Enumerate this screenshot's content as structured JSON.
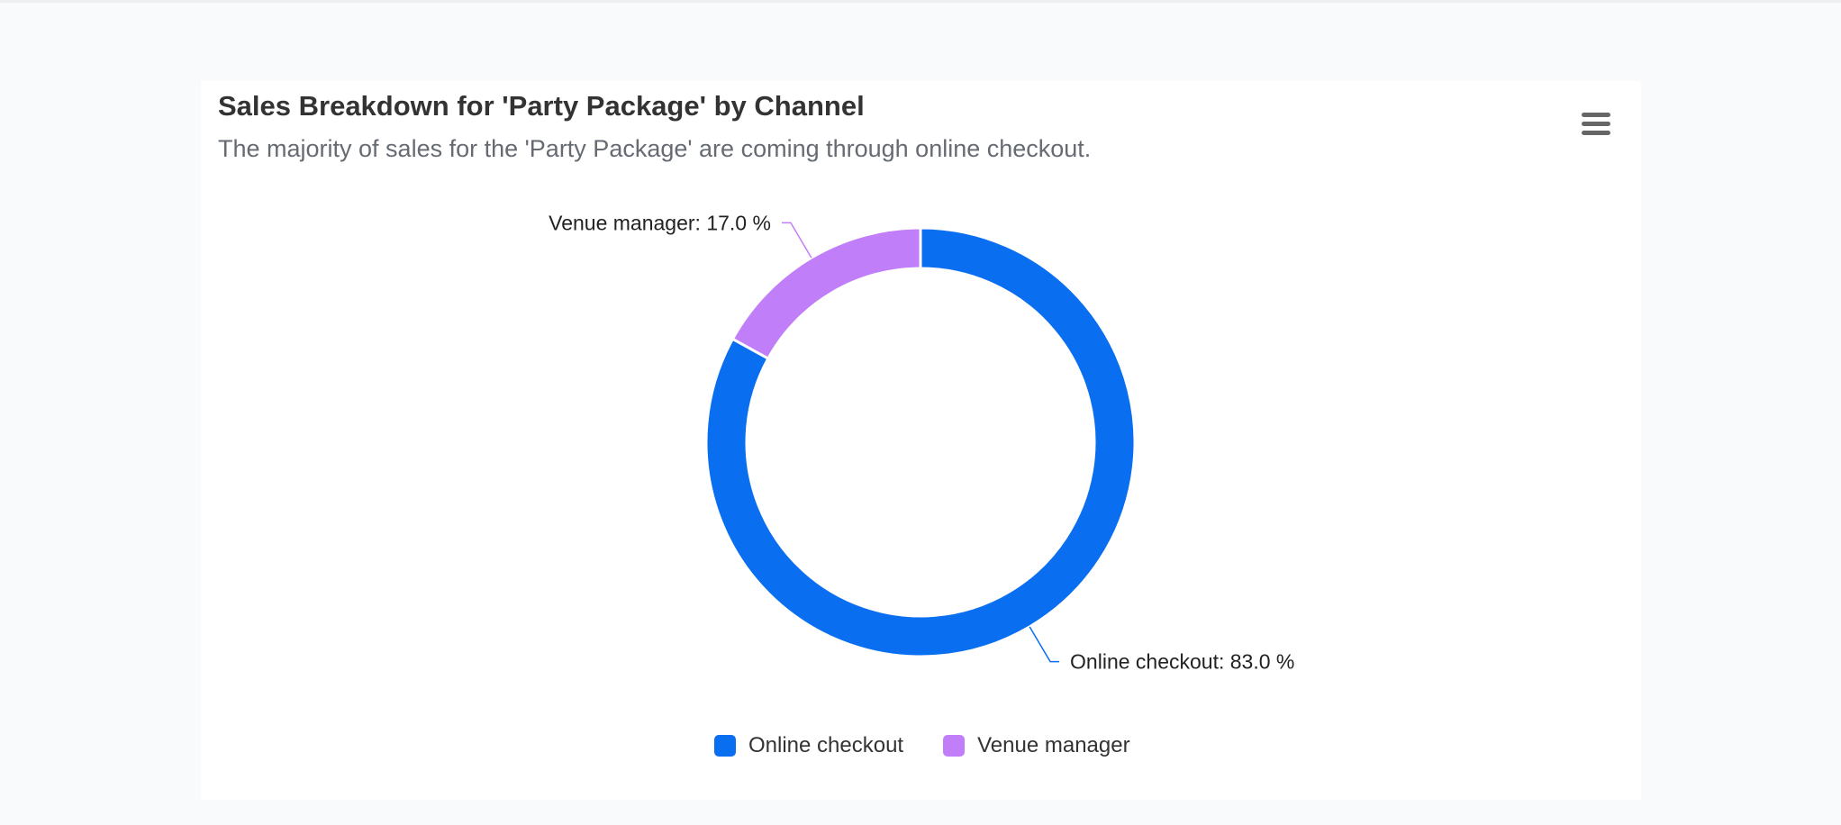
{
  "menu_icon": "hamburger-menu-icon",
  "chart_data": {
    "type": "pie",
    "variant": "donut",
    "title": "Sales Breakdown for 'Party Package' by Channel",
    "subtitle": "The majority of sales for the 'Party Package' are coming through online checkout.",
    "categories": [
      "Online checkout",
      "Venue manager"
    ],
    "values": [
      83.0,
      17.0
    ],
    "colors": [
      "#0a6ef0",
      "#c17ef9"
    ],
    "data_labels": [
      "Online checkout: 83.0 %",
      "Venue manager: 17.0 %"
    ],
    "legend": {
      "position": "bottom",
      "items": [
        "Online checkout",
        "Venue manager"
      ]
    }
  }
}
